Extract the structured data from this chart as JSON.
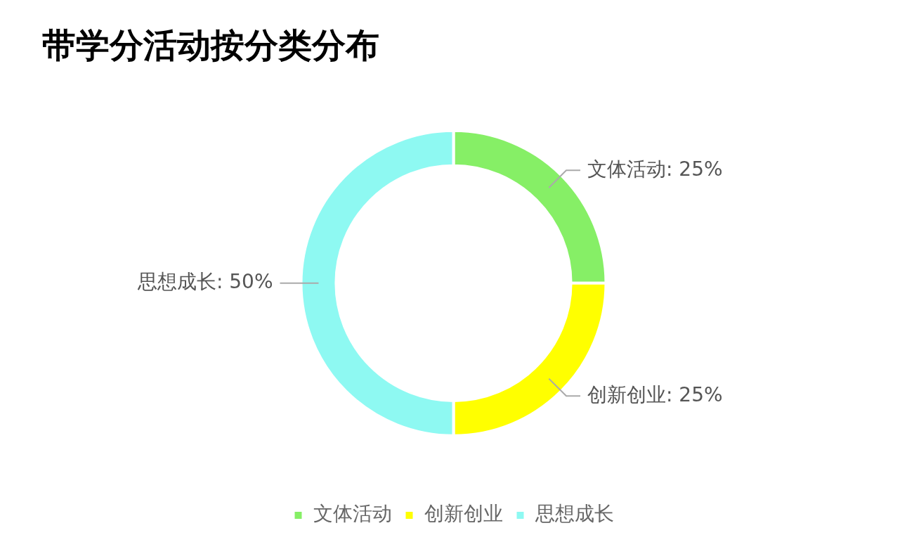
{
  "chart_data": {
    "type": "donut",
    "title": "带学分活动按分类分布",
    "categories": [
      "文体活动",
      "创新创业",
      "思想成长"
    ],
    "values": [
      25,
      25,
      50
    ],
    "value_labels": [
      "文体活动: 25%",
      "创新创业: 25%",
      "思想成长: 50%"
    ],
    "colors": [
      "#86ef66",
      "#ffff00",
      "#8ef9f2"
    ],
    "legend": "bottom"
  }
}
